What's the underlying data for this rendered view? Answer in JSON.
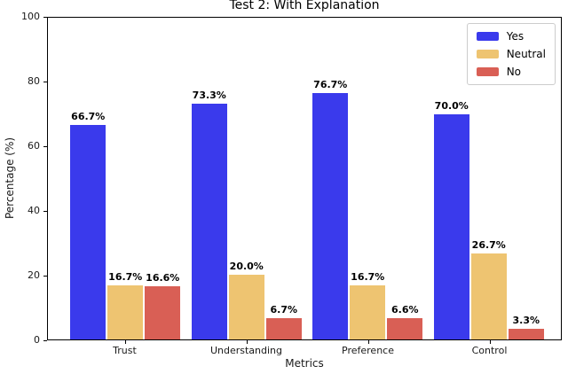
{
  "chart_data": {
    "type": "bar",
    "title": "Test 2: With Explanation",
    "xlabel": "Metrics",
    "ylabel": "Percentage (%)",
    "categories": [
      "Trust",
      "Understanding",
      "Preference",
      "Control"
    ],
    "series": [
      {
        "name": "Yes",
        "color": "#3a3aec",
        "values": [
          66.7,
          73.3,
          76.7,
          70.0
        ],
        "labels": [
          "66.7%",
          "73.3%",
          "76.7%",
          "70.0%"
        ]
      },
      {
        "name": "Neutral",
        "color": "#eec471",
        "values": [
          16.7,
          20.0,
          16.7,
          26.7
        ],
        "labels": [
          "16.7%",
          "20.0%",
          "16.7%",
          "26.7%"
        ]
      },
      {
        "name": "No",
        "color": "#d95f55",
        "values": [
          16.6,
          6.7,
          6.6,
          3.3
        ],
        "labels": [
          "16.6%",
          "6.7%",
          "6.6%",
          "3.3%"
        ]
      }
    ],
    "ylim": [
      0,
      100
    ],
    "yticks": [
      0,
      20,
      40,
      60,
      80,
      100
    ],
    "grid": false,
    "legend_position": "upper right"
  }
}
